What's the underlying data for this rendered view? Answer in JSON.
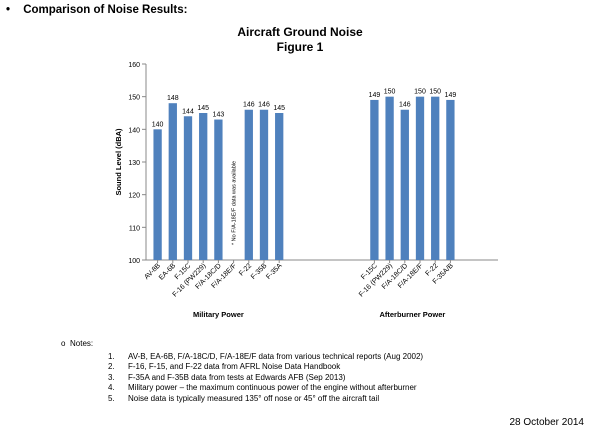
{
  "heading": {
    "bullet": "•",
    "text": "Comparison of Noise Results:"
  },
  "chart_data": {
    "type": "bar",
    "title": "Aircraft Ground Noise",
    "subtitle": "Figure 1",
    "ylabel": "Sound Level (dBA)",
    "ylim": [
      100,
      160
    ],
    "yticks": [
      100,
      110,
      120,
      130,
      140,
      150,
      160
    ],
    "grid": false,
    "color": "#4f81bd",
    "annotation": "* No F/A-18E/F data was available",
    "groups": [
      {
        "label": "Military Power",
        "categories": [
          "AV-8B",
          "EA-6B",
          "F-15C",
          "F-16 (PW229)",
          "F/A-18C/D",
          "F/A-18E/F",
          "F-22",
          "F-35B",
          "F-35A"
        ],
        "values": [
          140,
          148,
          144,
          145,
          143,
          null,
          146,
          146,
          145
        ]
      },
      {
        "label": "Afterburner Power",
        "categories": [
          "F-15C",
          "F-16 (PW229)",
          "F/A-18C/D",
          "F/A-18E/F",
          "F-22",
          "F-35A/B"
        ],
        "values": [
          149,
          150,
          146,
          150,
          150,
          149
        ]
      }
    ]
  },
  "notes": {
    "bullet": "o",
    "title": "Notes:",
    "items": [
      {
        "num": "1.",
        "text": "AV-B, EA-6B, F/A-18C/D, F/A-18E/F data from various technical reports (Aug 2002)"
      },
      {
        "num": "2.",
        "text": "F-16, F-15, and F-22 data from AFRL Noise Data Handbook"
      },
      {
        "num": "3.",
        "text": "F-35A and F-35B data from tests at Edwards AFB (Sep 2013)"
      },
      {
        "num": "4.",
        "text": "Military power – the maximum continuous power of the engine without afterburner"
      },
      {
        "num": "5.",
        "text": "Noise data is typically measured 135° off nose or 45° off the aircraft tail"
      }
    ]
  },
  "footer": {
    "date": "28 October 2014"
  }
}
